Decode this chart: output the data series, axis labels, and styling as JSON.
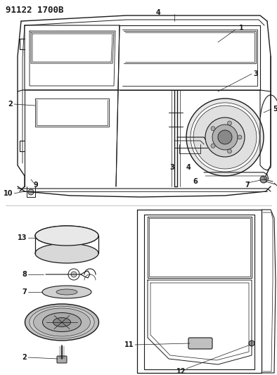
{
  "title": "91122 1700B",
  "bg_color": "#ffffff",
  "line_color": "#1a1a1a",
  "gray": "#888888",
  "lightgray": "#cccccc",
  "title_fontsize": 9,
  "label_fontsize": 7
}
